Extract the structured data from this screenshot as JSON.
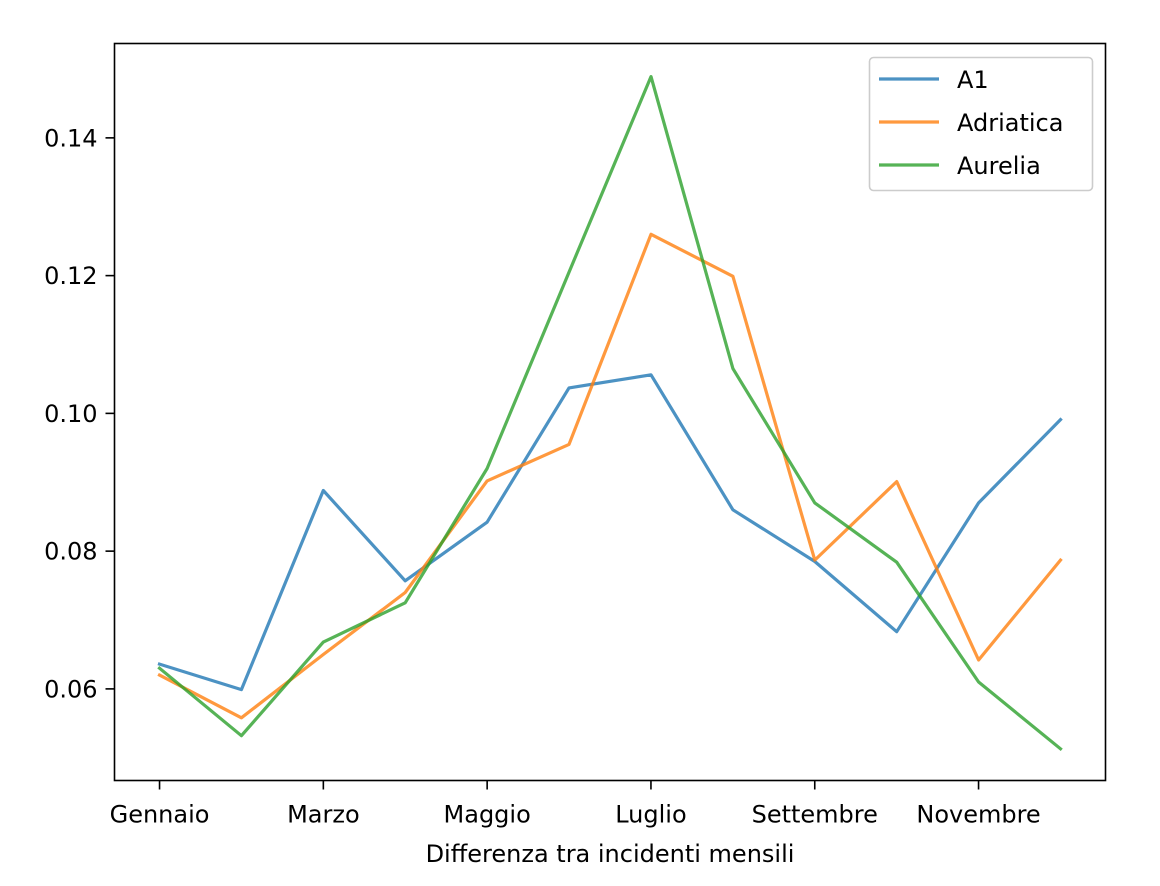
{
  "chart_data": {
    "type": "line",
    "title": "",
    "xlabel": "Differenza tra incidenti mensili",
    "ylabel": "",
    "x": [
      0,
      1,
      2,
      3,
      4,
      5,
      6,
      7,
      8,
      9,
      10,
      11
    ],
    "xticks": [
      {
        "x": 0,
        "label": "Gennaio"
      },
      {
        "x": 2,
        "label": "Marzo"
      },
      {
        "x": 4,
        "label": "Maggio"
      },
      {
        "x": 6,
        "label": "Luglio"
      },
      {
        "x": 8,
        "label": "Settembre"
      },
      {
        "x": 10,
        "label": "Novembre"
      }
    ],
    "yticks": [
      "0.06",
      "0.08",
      "0.10",
      "0.12",
      "0.14"
    ],
    "ytick_values": [
      0.06,
      0.08,
      0.1,
      0.12,
      0.14
    ],
    "xlim": [
      -0.55,
      11.55
    ],
    "ylim": [
      0.0467,
      0.1537
    ],
    "grid": false,
    "legend_position": "upper right",
    "series": [
      {
        "name": "A1",
        "color": "#1f77b4",
        "values": [
          0.0636,
          0.0599,
          0.0888,
          0.0757,
          0.0842,
          0.1037,
          0.1056,
          0.086,
          0.0785,
          0.0683,
          0.087,
          0.0991
        ]
      },
      {
        "name": "Adriatica",
        "color": "#ff7f0e",
        "values": [
          0.062,
          0.0558,
          0.065,
          0.074,
          0.0902,
          0.0955,
          0.126,
          0.1199,
          0.0787,
          0.0901,
          0.0642,
          0.0787
        ]
      },
      {
        "name": "Aurelia",
        "color": "#2ca02c",
        "values": [
          0.063,
          0.0532,
          0.0668,
          0.0725,
          0.092,
          0.1205,
          0.1489,
          0.1065,
          0.087,
          0.0784,
          0.061,
          0.0513
        ]
      }
    ]
  }
}
